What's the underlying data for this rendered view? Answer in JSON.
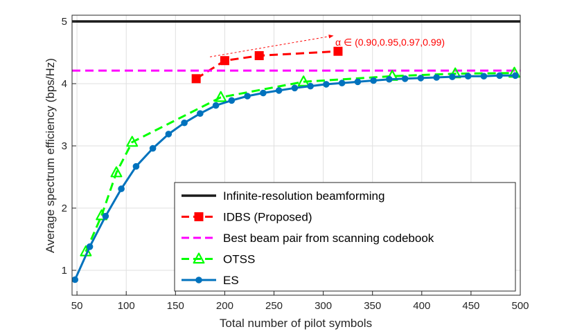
{
  "chart_data": {
    "type": "line",
    "title": "",
    "xlabel": "Total number of pilot symbols",
    "ylabel": "Average spectrum efficiency (bps/Hz)",
    "xlim": [
      45,
      500
    ],
    "ylim": [
      0.6,
      5.1
    ],
    "xticks": [
      50,
      100,
      150,
      200,
      250,
      300,
      350,
      400,
      450,
      500
    ],
    "yticks": [
      1,
      2,
      3,
      4,
      5
    ],
    "grid": true,
    "legend_position": "bottom-right",
    "series": [
      {
        "name": "Infinite-resolution beamforming",
        "color": "#1a1a1a",
        "line_style": "solid",
        "marker": "none",
        "x": [
          45,
          500
        ],
        "y": [
          5.0,
          5.0
        ]
      },
      {
        "name": "IDBS (Proposed)",
        "color": "#ff0000",
        "line_style": "dashed",
        "marker": "square",
        "x": [
          171,
          200,
          235,
          315
        ],
        "y": [
          4.08,
          4.37,
          4.45,
          4.52
        ]
      },
      {
        "name": "Best beam pair from scanning codebook",
        "color": "#ff00ff",
        "line_style": "dashed",
        "marker": "none",
        "x": [
          45,
          500
        ],
        "y": [
          4.21,
          4.21
        ]
      },
      {
        "name": "OTSS",
        "color": "#00ff00",
        "line_style": "dashed",
        "marker": "triangle",
        "x": [
          59,
          75,
          90,
          106,
          196,
          280,
          370,
          434,
          494
        ],
        "y": [
          1.3,
          1.88,
          2.57,
          3.06,
          3.78,
          4.03,
          4.12,
          4.16,
          4.17
        ]
      },
      {
        "name": "ES",
        "color": "#0072bd",
        "line_style": "solid",
        "marker": "circle",
        "x": [
          48,
          63,
          79,
          95,
          110,
          127,
          143,
          159,
          175,
          191,
          207,
          223,
          239,
          255,
          271,
          287,
          303,
          319,
          335,
          351,
          367,
          383,
          399,
          415,
          431,
          447,
          463,
          479,
          495
        ],
        "y": [
          0.85,
          1.38,
          1.87,
          2.31,
          2.67,
          2.96,
          3.19,
          3.37,
          3.52,
          3.65,
          3.73,
          3.8,
          3.85,
          3.89,
          3.93,
          3.96,
          3.99,
          4.01,
          4.03,
          4.05,
          4.07,
          4.08,
          4.09,
          4.1,
          4.11,
          4.12,
          4.12,
          4.13,
          4.13
        ]
      }
    ],
    "annotation": {
      "text": "α ∈ (0.90,0.95,0.97,0.99)",
      "from": [
        185,
        4.43
      ],
      "to": [
        310,
        4.77
      ]
    }
  }
}
